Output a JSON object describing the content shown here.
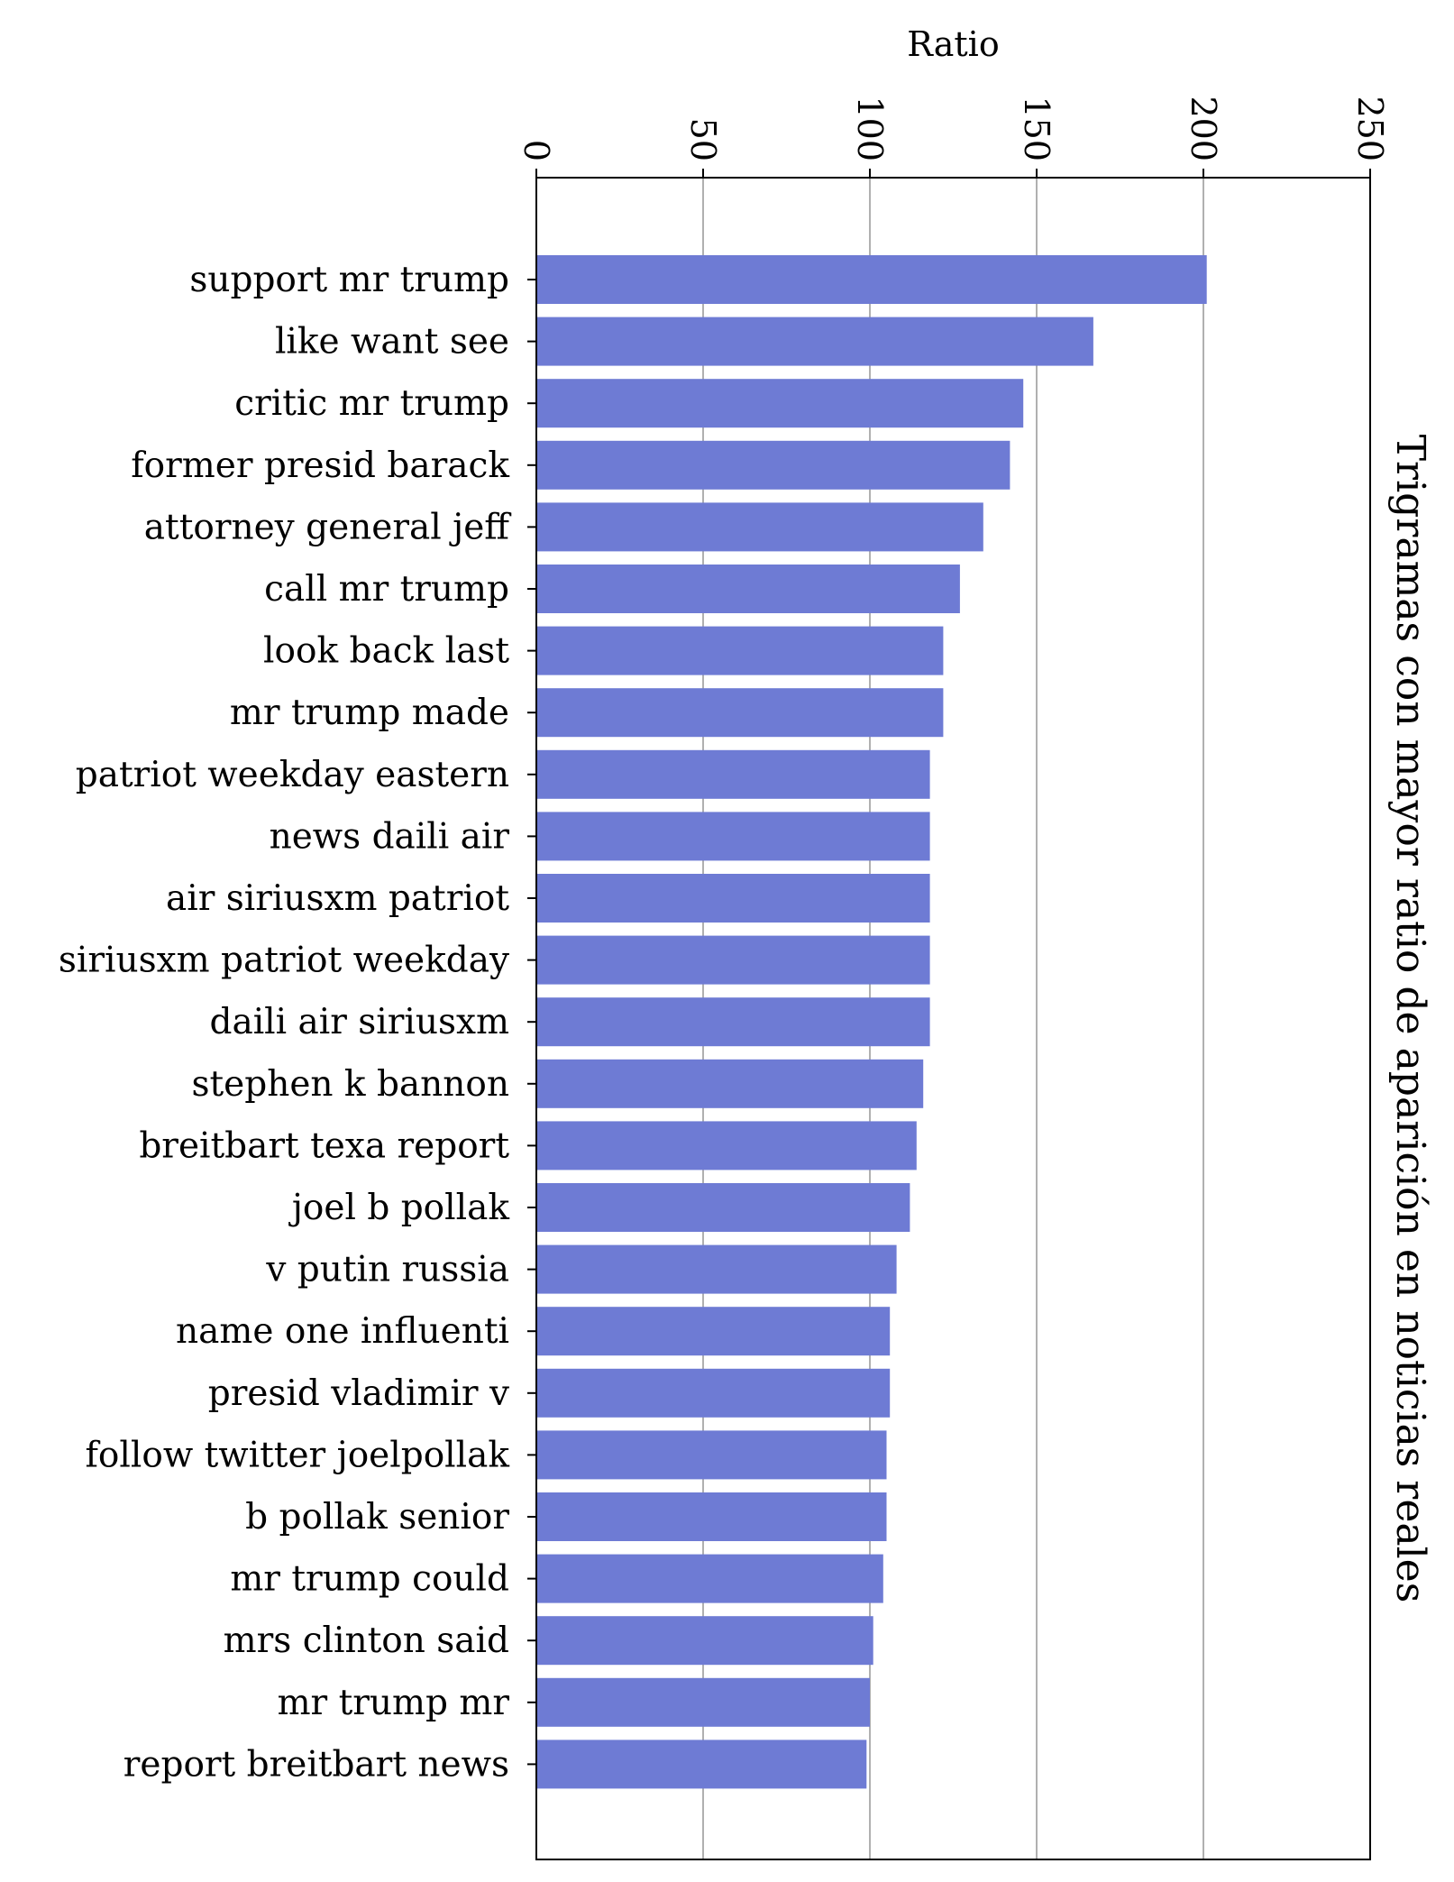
{
  "chart_data": {
    "type": "bar",
    "orientation": "horizontal",
    "title": "Trigramas con mayor ratio de aparición en noticias reales",
    "xlabel": "Ratio",
    "ylabel": "",
    "xlim": [
      0,
      250
    ],
    "xticks": [
      0,
      50,
      100,
      150,
      200,
      250
    ],
    "xtick_labels": [
      "0",
      "50",
      "100",
      "150",
      "200",
      "250"
    ],
    "grid": "x-major",
    "bar_color": "#6e7bd4",
    "categories": [
      "support mr trump",
      "like want see",
      "critic mr trump",
      "former presid barack",
      "attorney general jeff",
      "call mr trump",
      "look back last",
      "mr trump made",
      "patriot weekday eastern",
      "news daili air",
      "air siriusxm patriot",
      "siriusxm patriot weekday",
      "daili air siriusxm",
      "stephen k bannon",
      "breitbart texa report",
      "joel b pollak",
      "v putin russia",
      "name one influenti",
      "presid vladimir v",
      "follow twitter joelpollak",
      "b pollak senior",
      "mr trump could",
      "mrs clinton said",
      "mr trump mr",
      "report breitbart news"
    ],
    "values": [
      201,
      167,
      146,
      142,
      134,
      127,
      122,
      122,
      118,
      118,
      118,
      118,
      118,
      116,
      114,
      112,
      108,
      106,
      106,
      105,
      105,
      104,
      101,
      100,
      99
    ]
  }
}
